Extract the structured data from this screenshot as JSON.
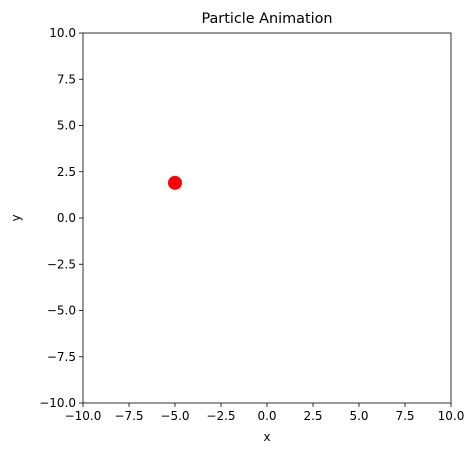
{
  "chart_data": {
    "type": "scatter",
    "title": "Particle Animation",
    "xlabel": "x",
    "ylabel": "y",
    "xlim": [
      -10,
      10
    ],
    "ylim": [
      -10,
      10
    ],
    "x_ticks": [
      "−10.0",
      "−7.5",
      "−5.0",
      "−2.5",
      "0.0",
      "2.5",
      "5.0",
      "7.5",
      "10.0"
    ],
    "y_ticks": [
      "−10.0",
      "−7.5",
      "−5.0",
      "−2.5",
      "0.0",
      "2.5",
      "5.0",
      "7.5",
      "10.0"
    ],
    "x_tick_values": [
      -10,
      -7.5,
      -5,
      -2.5,
      0,
      2.5,
      5,
      7.5,
      10
    ],
    "y_tick_values": [
      -10,
      -7.5,
      -5,
      -2.5,
      0,
      2.5,
      5,
      7.5,
      10
    ],
    "grid": false,
    "series": [
      {
        "points": [
          {
            "x": -5.0,
            "y": 1.9
          }
        ],
        "color": "#ff0000",
        "marker": "circle"
      }
    ]
  }
}
